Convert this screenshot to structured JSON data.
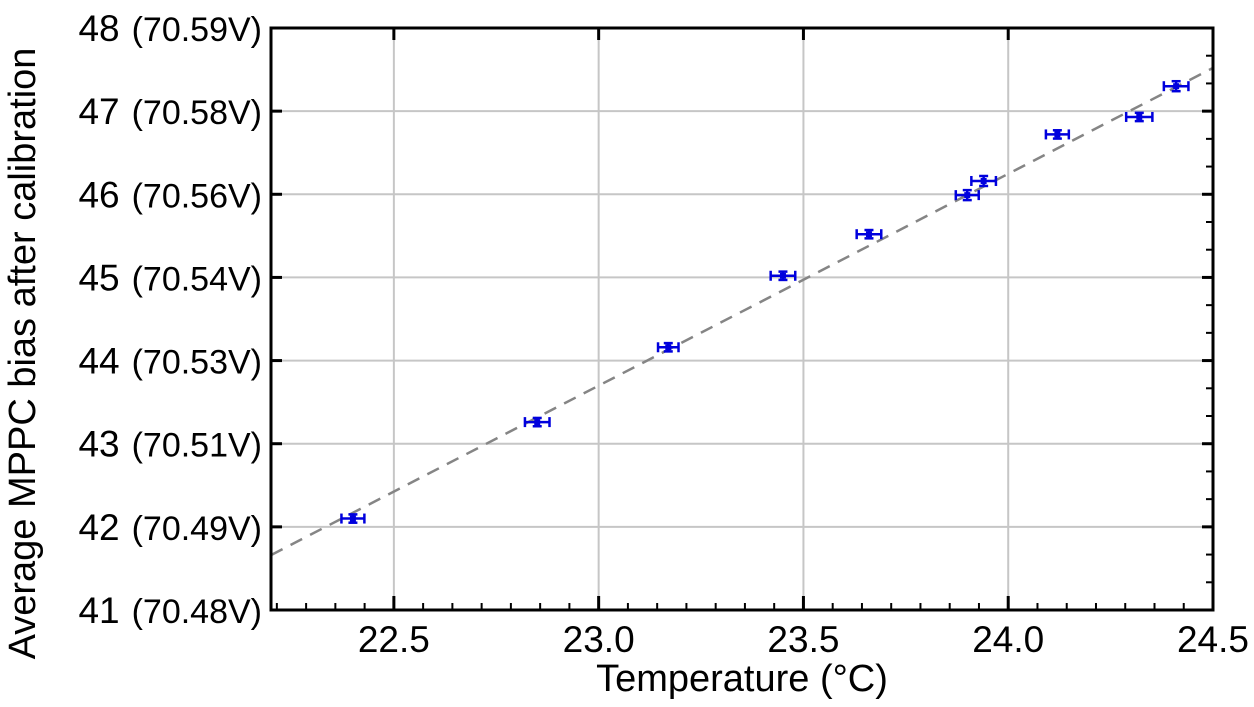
{
  "chart_data": {
    "type": "scatter",
    "title": "",
    "xlabel": "Temperature (°C)",
    "ylabel": "Average MPPC bias after calibration",
    "xlim": [
      22.2,
      24.5
    ],
    "ylim": [
      41,
      48
    ],
    "grid": true,
    "legend": "none",
    "x_ticks": [
      {
        "value": 22.5,
        "label": "22.5"
      },
      {
        "value": 23.0,
        "label": "23.0"
      },
      {
        "value": 23.5,
        "label": "23.5"
      },
      {
        "value": 24.0,
        "label": "24.0"
      },
      {
        "value": 24.5,
        "label": "24.5"
      }
    ],
    "y_ticks": [
      {
        "value": 41,
        "label": "41",
        "volt": "(70.48V)"
      },
      {
        "value": 42,
        "label": "42",
        "volt": "(70.49V)"
      },
      {
        "value": 43,
        "label": "43",
        "volt": "(70.51V)"
      },
      {
        "value": 44,
        "label": "44",
        "volt": "(70.53V)"
      },
      {
        "value": 45,
        "label": "45",
        "volt": "(70.54V)"
      },
      {
        "value": 46,
        "label": "46",
        "volt": "(70.56V)"
      },
      {
        "value": 47,
        "label": "47",
        "volt": "(70.58V)"
      },
      {
        "value": 48,
        "label": "48",
        "volt": "(70.59V)"
      }
    ],
    "x_minor_divisions_per_major": 7,
    "y_minor_divisions_per_unit": 3,
    "series": [
      {
        "name": "average-mppc-bias-points",
        "marker": "square",
        "color": "#0000dd",
        "points": [
          {
            "x": 22.4,
            "y": 42.1,
            "ex": 0.028,
            "ey": 0.05
          },
          {
            "x": 22.85,
            "y": 43.26,
            "ex": 0.03,
            "ey": 0.05
          },
          {
            "x": 23.17,
            "y": 44.16,
            "ex": 0.025,
            "ey": 0.05
          },
          {
            "x": 23.45,
            "y": 45.02,
            "ex": 0.03,
            "ey": 0.05
          },
          {
            "x": 23.66,
            "y": 45.52,
            "ex": 0.03,
            "ey": 0.05
          },
          {
            "x": 23.9,
            "y": 45.99,
            "ex": 0.028,
            "ey": 0.06
          },
          {
            "x": 23.94,
            "y": 46.16,
            "ex": 0.03,
            "ey": 0.06
          },
          {
            "x": 24.12,
            "y": 46.72,
            "ex": 0.028,
            "ey": 0.05
          },
          {
            "x": 24.32,
            "y": 46.93,
            "ex": 0.032,
            "ey": 0.05
          },
          {
            "x": 24.41,
            "y": 47.3,
            "ex": 0.03,
            "ey": 0.06
          }
        ]
      }
    ],
    "fit_line": {
      "style": "dashed",
      "color": "#858585",
      "x_start": 22.2,
      "y_start": 41.66,
      "x_end": 24.5,
      "y_end": 47.52
    },
    "colors": {
      "points": "#0000dd",
      "fit_line": "#858585",
      "gridline": "#c6c6c6",
      "frame": "#000000",
      "background": "#ffffff"
    }
  }
}
